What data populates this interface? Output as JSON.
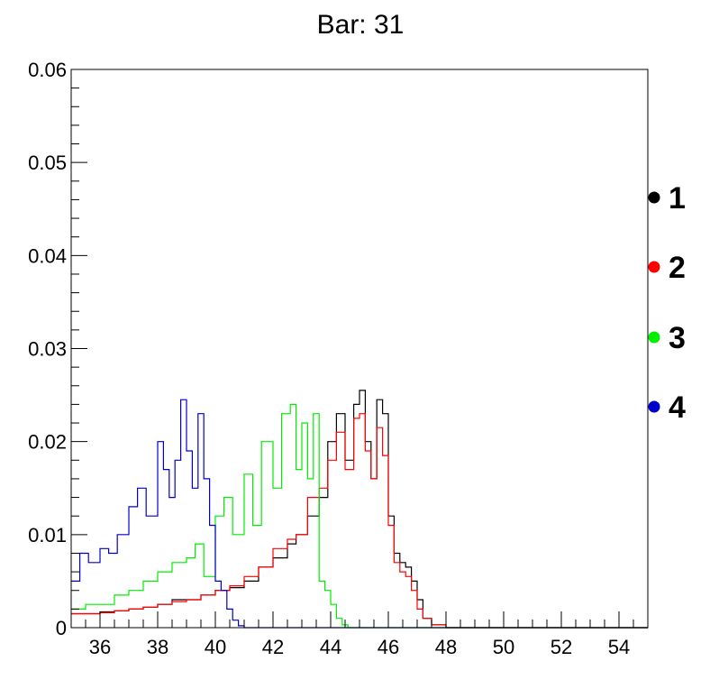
{
  "chart_data": {
    "type": "line",
    "title": "Bar: 31",
    "xlabel": "",
    "ylabel": "",
    "xlim": [
      35,
      55
    ],
    "ylim": [
      0,
      0.06
    ],
    "x_ticks": [
      "36",
      "38",
      "40",
      "42",
      "44",
      "46",
      "48",
      "50",
      "52",
      "54"
    ],
    "y_ticks": [
      "0",
      "0.01",
      "0.02",
      "0.03",
      "0.04",
      "0.05",
      "0.06"
    ],
    "grid": false,
    "legend_position": "right",
    "series": [
      {
        "name": "1",
        "color": "#000000",
        "x": [
          35.0,
          35.5,
          36.0,
          36.5,
          37.0,
          37.5,
          38.0,
          38.5,
          39.0,
          39.5,
          40.0,
          40.5,
          41.0,
          41.5,
          42.0,
          42.5,
          42.8,
          43.2,
          43.6,
          43.9,
          44.2,
          44.5,
          44.8,
          45.0,
          45.2,
          45.4,
          45.6,
          45.8,
          46.0,
          46.2,
          46.4,
          46.6,
          46.8,
          47.0,
          47.2,
          47.5,
          48.0,
          55.0
        ],
        "y": [
          0.0015,
          0.0015,
          0.0017,
          0.0018,
          0.002,
          0.0022,
          0.0025,
          0.003,
          0.003,
          0.0035,
          0.004,
          0.0043,
          0.005,
          0.0065,
          0.0075,
          0.009,
          0.01,
          0.012,
          0.014,
          0.02,
          0.023,
          0.018,
          0.024,
          0.0255,
          0.02,
          0.016,
          0.0245,
          0.023,
          0.012,
          0.008,
          0.007,
          0.0065,
          0.005,
          0.003,
          0.001,
          0.0003,
          0.0,
          0.0
        ]
      },
      {
        "name": "2",
        "color": "#ff0000",
        "x": [
          35.0,
          35.5,
          36.0,
          36.5,
          37.0,
          37.5,
          38.0,
          38.5,
          39.0,
          39.5,
          40.0,
          40.5,
          41.0,
          41.5,
          42.0,
          42.5,
          42.8,
          43.2,
          43.6,
          43.9,
          44.2,
          44.5,
          44.8,
          45.0,
          45.2,
          45.4,
          45.6,
          45.8,
          46.0,
          46.2,
          46.4,
          46.6,
          46.8,
          47.0,
          47.2,
          47.5,
          48.0,
          55.0
        ],
        "y": [
          0.0015,
          0.0015,
          0.0016,
          0.0018,
          0.002,
          0.0022,
          0.0025,
          0.0028,
          0.003,
          0.0035,
          0.004,
          0.0045,
          0.0055,
          0.0065,
          0.0085,
          0.0095,
          0.01,
          0.014,
          0.015,
          0.018,
          0.021,
          0.017,
          0.0225,
          0.023,
          0.019,
          0.016,
          0.0215,
          0.0185,
          0.011,
          0.007,
          0.006,
          0.0055,
          0.004,
          0.002,
          0.001,
          0.0003,
          0.0,
          0.0
        ]
      },
      {
        "name": "3",
        "color": "#00ee00",
        "x": [
          35.0,
          35.5,
          36.0,
          36.5,
          37.0,
          37.5,
          38.0,
          38.5,
          39.0,
          39.3,
          39.6,
          40.0,
          40.3,
          40.6,
          41.0,
          41.3,
          41.6,
          42.0,
          42.3,
          42.6,
          42.8,
          43.0,
          43.2,
          43.4,
          43.6,
          43.8,
          44.0,
          44.2,
          44.4,
          44.6,
          45.0,
          55.0
        ],
        "y": [
          0.002,
          0.0025,
          0.0025,
          0.0035,
          0.004,
          0.005,
          0.006,
          0.007,
          0.0075,
          0.009,
          0.0055,
          0.012,
          0.014,
          0.01,
          0.0165,
          0.011,
          0.02,
          0.015,
          0.023,
          0.024,
          0.017,
          0.022,
          0.016,
          0.023,
          0.005,
          0.004,
          0.0025,
          0.001,
          0.0003,
          0.0,
          0.0,
          0.0
        ]
      },
      {
        "name": "4",
        "color": "#0000cc",
        "x": [
          35.0,
          35.3,
          35.6,
          36.0,
          36.3,
          36.6,
          37.0,
          37.3,
          37.6,
          38.0,
          38.2,
          38.4,
          38.6,
          38.8,
          39.0,
          39.2,
          39.4,
          39.6,
          39.8,
          40.0,
          40.2,
          40.4,
          40.6,
          40.8,
          41.0,
          55.0
        ],
        "y": [
          0.005,
          0.008,
          0.007,
          0.0085,
          0.008,
          0.01,
          0.013,
          0.015,
          0.012,
          0.02,
          0.017,
          0.014,
          0.018,
          0.0245,
          0.019,
          0.015,
          0.023,
          0.016,
          0.011,
          0.005,
          0.004,
          0.002,
          0.0008,
          0.0002,
          0.0,
          0.0
        ]
      }
    ]
  }
}
